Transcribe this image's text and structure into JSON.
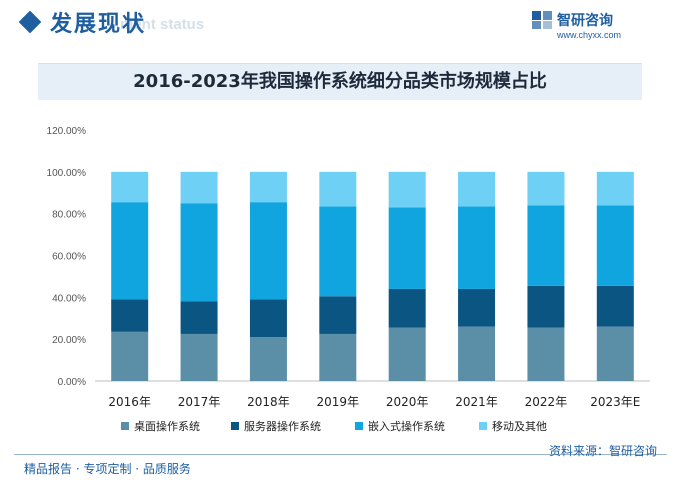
{
  "header": {
    "section_title": "发展现状",
    "section_subtitle": "ment status",
    "brand_name": "智研咨询",
    "brand_site": "www.chyxx.com"
  },
  "footer": {
    "left_text": "精品报告 · 专项定制 · 品质服务",
    "source_text": "资料来源：智研咨询"
  },
  "colors": {
    "accent": "#1f5fa0"
  },
  "chart_data": {
    "type": "bar",
    "stacked": true,
    "title": "2016-2023年我国操作系统细分品类市场规模占比",
    "categories": [
      "2016年",
      "2017年",
      "2018年",
      "2019年",
      "2020年",
      "2021年",
      "2022年",
      "2023年E"
    ],
    "series": [
      {
        "name": "桌面操作系统",
        "color": "#5b8fa8",
        "values": [
          23.5,
          22.5,
          21.0,
          22.5,
          25.5,
          26.0,
          25.5,
          26.0
        ]
      },
      {
        "name": "服务器操作系统",
        "color": "#0b5583",
        "values": [
          15.5,
          15.5,
          18.0,
          18.0,
          18.5,
          18.0,
          20.0,
          19.5
        ]
      },
      {
        "name": "嵌入式操作系统",
        "color": "#10a5df",
        "values": [
          46.5,
          47.0,
          46.5,
          43.0,
          39.0,
          39.5,
          38.5,
          38.5
        ]
      },
      {
        "name": "移动及其他",
        "color": "#6fd0f6",
        "values": [
          14.5,
          15.0,
          14.5,
          16.5,
          17.0,
          16.5,
          16.0,
          16.0
        ]
      }
    ],
    "yticks": [
      "0.00%",
      "20.00%",
      "40.00%",
      "60.00%",
      "80.00%",
      "100.00%",
      "120.00%"
    ],
    "ylim": [
      0,
      120
    ],
    "grid": false,
    "legend_position": "bottom"
  }
}
